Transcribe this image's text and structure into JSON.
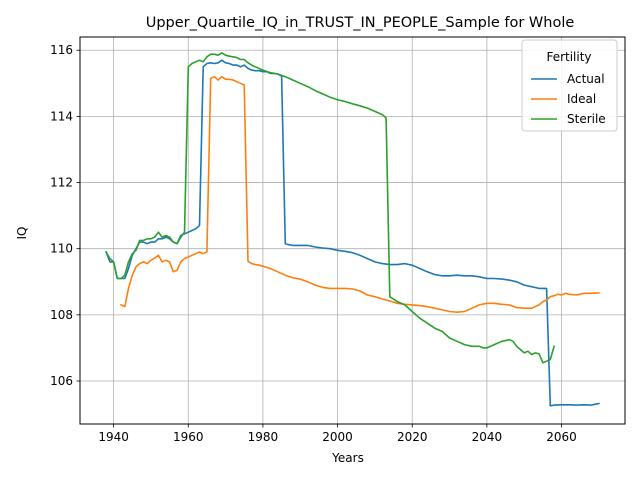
{
  "chart_data": {
    "type": "line",
    "title": "Upper_Quartile_IQ_in_TRUST_IN_PEOPLE_Sample for Whole",
    "xlabel": "Years",
    "ylabel": "IQ",
    "xlim": [
      1931,
      2077
    ],
    "ylim": [
      104.7,
      116.4
    ],
    "xticks": [
      1940,
      1960,
      1980,
      2000,
      2020,
      2040,
      2060
    ],
    "yticks": [
      106,
      108,
      110,
      112,
      114,
      116
    ],
    "grid": true,
    "legend": {
      "title": "Fertility",
      "position": "top-right"
    },
    "series": [
      {
        "name": "Actual",
        "color": "#1f77b4",
        "points": [
          [
            1938,
            109.9
          ],
          [
            1939,
            109.6
          ],
          [
            1940,
            109.6
          ],
          [
            1941,
            109.1
          ],
          [
            1942,
            109.1
          ],
          [
            1943,
            109.1
          ],
          [
            1944,
            109.4
          ],
          [
            1945,
            109.8
          ],
          [
            1946,
            110.0
          ],
          [
            1947,
            110.2
          ],
          [
            1948,
            110.2
          ],
          [
            1949,
            110.15
          ],
          [
            1950,
            110.2
          ],
          [
            1951,
            110.2
          ],
          [
            1952,
            110.3
          ],
          [
            1953,
            110.3
          ],
          [
            1954,
            110.35
          ],
          [
            1955,
            110.3
          ],
          [
            1956,
            110.2
          ],
          [
            1957,
            110.15
          ],
          [
            1958,
            110.4
          ],
          [
            1959,
            110.45
          ],
          [
            1960,
            110.5
          ],
          [
            1961,
            110.55
          ],
          [
            1962,
            110.6
          ],
          [
            1963,
            110.7
          ],
          [
            1964,
            115.5
          ],
          [
            1965,
            115.6
          ],
          [
            1966,
            115.62
          ],
          [
            1967,
            115.6
          ],
          [
            1968,
            115.62
          ],
          [
            1969,
            115.7
          ],
          [
            1970,
            115.62
          ],
          [
            1971,
            115.6
          ],
          [
            1972,
            115.55
          ],
          [
            1973,
            115.55
          ],
          [
            1974,
            115.5
          ],
          [
            1975,
            115.55
          ],
          [
            1976,
            115.45
          ],
          [
            1977,
            115.4
          ],
          [
            1978,
            115.38
          ],
          [
            1979,
            115.38
          ],
          [
            1980,
            115.35
          ],
          [
            1981,
            115.35
          ],
          [
            1982,
            115.3
          ],
          [
            1983,
            115.3
          ],
          [
            1984,
            115.28
          ],
          [
            1985,
            115.22
          ],
          [
            1986,
            110.15
          ],
          [
            1987,
            110.12
          ],
          [
            1988,
            110.1
          ],
          [
            1990,
            110.1
          ],
          [
            1992,
            110.1
          ],
          [
            1994,
            110.05
          ],
          [
            1996,
            110.02
          ],
          [
            1998,
            110.0
          ],
          [
            2000,
            109.95
          ],
          [
            2002,
            109.92
          ],
          [
            2004,
            109.88
          ],
          [
            2006,
            109.8
          ],
          [
            2008,
            109.7
          ],
          [
            2010,
            109.6
          ],
          [
            2012,
            109.55
          ],
          [
            2014,
            109.52
          ],
          [
            2016,
            109.52
          ],
          [
            2018,
            109.55
          ],
          [
            2020,
            109.5
          ],
          [
            2022,
            109.4
          ],
          [
            2024,
            109.3
          ],
          [
            2026,
            109.22
          ],
          [
            2028,
            109.18
          ],
          [
            2030,
            109.18
          ],
          [
            2032,
            109.2
          ],
          [
            2034,
            109.18
          ],
          [
            2036,
            109.18
          ],
          [
            2038,
            109.15
          ],
          [
            2040,
            109.1
          ],
          [
            2042,
            109.1
          ],
          [
            2044,
            109.08
          ],
          [
            2046,
            109.05
          ],
          [
            2048,
            109.0
          ],
          [
            2050,
            108.9
          ],
          [
            2052,
            108.85
          ],
          [
            2054,
            108.8
          ],
          [
            2055,
            108.8
          ],
          [
            2056,
            108.8
          ],
          [
            2057,
            105.25
          ],
          [
            2058,
            105.27
          ],
          [
            2060,
            105.28
          ],
          [
            2062,
            105.28
          ],
          [
            2064,
            105.27
          ],
          [
            2066,
            105.28
          ],
          [
            2068,
            105.27
          ],
          [
            2069,
            105.3
          ],
          [
            2070,
            105.32
          ]
        ]
      },
      {
        "name": "Ideal",
        "color": "#ff7f0e",
        "points": [
          [
            1942,
            108.3
          ],
          [
            1943,
            108.25
          ],
          [
            1944,
            108.8
          ],
          [
            1945,
            109.2
          ],
          [
            1946,
            109.45
          ],
          [
            1947,
            109.55
          ],
          [
            1948,
            109.6
          ],
          [
            1949,
            109.55
          ],
          [
            1950,
            109.65
          ],
          [
            1951,
            109.72
          ],
          [
            1952,
            109.8
          ],
          [
            1953,
            109.6
          ],
          [
            1954,
            109.65
          ],
          [
            1955,
            109.6
          ],
          [
            1956,
            109.3
          ],
          [
            1957,
            109.35
          ],
          [
            1958,
            109.6
          ],
          [
            1959,
            109.7
          ],
          [
            1960,
            109.75
          ],
          [
            1961,
            109.8
          ],
          [
            1962,
            109.85
          ],
          [
            1963,
            109.9
          ],
          [
            1964,
            109.85
          ],
          [
            1965,
            109.9
          ],
          [
            1966,
            115.15
          ],
          [
            1967,
            115.2
          ],
          [
            1968,
            115.1
          ],
          [
            1969,
            115.2
          ],
          [
            1970,
            115.12
          ],
          [
            1971,
            115.12
          ],
          [
            1972,
            115.1
          ],
          [
            1973,
            115.05
          ],
          [
            1974,
            115.0
          ],
          [
            1975,
            114.95
          ],
          [
            1976,
            109.62
          ],
          [
            1977,
            109.55
          ],
          [
            1978,
            109.52
          ],
          [
            1979,
            109.5
          ],
          [
            1980,
            109.47
          ],
          [
            1982,
            109.4
          ],
          [
            1984,
            109.3
          ],
          [
            1986,
            109.2
          ],
          [
            1988,
            109.12
          ],
          [
            1990,
            109.08
          ],
          [
            1992,
            109.0
          ],
          [
            1994,
            108.9
          ],
          [
            1996,
            108.83
          ],
          [
            1998,
            108.8
          ],
          [
            2000,
            108.8
          ],
          [
            2002,
            108.8
          ],
          [
            2004,
            108.78
          ],
          [
            2006,
            108.72
          ],
          [
            2008,
            108.6
          ],
          [
            2010,
            108.55
          ],
          [
            2012,
            108.48
          ],
          [
            2014,
            108.42
          ],
          [
            2016,
            108.35
          ],
          [
            2018,
            108.32
          ],
          [
            2020,
            108.3
          ],
          [
            2022,
            108.28
          ],
          [
            2024,
            108.25
          ],
          [
            2026,
            108.2
          ],
          [
            2028,
            108.15
          ],
          [
            2030,
            108.1
          ],
          [
            2032,
            108.08
          ],
          [
            2034,
            108.1
          ],
          [
            2036,
            108.2
          ],
          [
            2038,
            108.3
          ],
          [
            2040,
            108.35
          ],
          [
            2042,
            108.35
          ],
          [
            2044,
            108.32
          ],
          [
            2046,
            108.3
          ],
          [
            2048,
            108.22
          ],
          [
            2050,
            108.2
          ],
          [
            2052,
            108.2
          ],
          [
            2054,
            108.3
          ],
          [
            2055,
            108.4
          ],
          [
            2056,
            108.45
          ],
          [
            2057,
            108.55
          ],
          [
            2058,
            108.58
          ],
          [
            2059,
            108.62
          ],
          [
            2060,
            108.6
          ],
          [
            2061,
            108.65
          ],
          [
            2062,
            108.62
          ],
          [
            2064,
            108.6
          ],
          [
            2066,
            108.65
          ],
          [
            2068,
            108.65
          ],
          [
            2070,
            108.66
          ]
        ]
      },
      {
        "name": "Sterile",
        "color": "#2ca02c",
        "points": [
          [
            1938,
            109.9
          ],
          [
            1939,
            109.7
          ],
          [
            1940,
            109.6
          ],
          [
            1941,
            109.1
          ],
          [
            1942,
            109.1
          ],
          [
            1943,
            109.2
          ],
          [
            1944,
            109.6
          ],
          [
            1945,
            109.85
          ],
          [
            1946,
            109.95
          ],
          [
            1947,
            110.25
          ],
          [
            1948,
            110.25
          ],
          [
            1949,
            110.3
          ],
          [
            1950,
            110.3
          ],
          [
            1951,
            110.35
          ],
          [
            1952,
            110.5
          ],
          [
            1953,
            110.35
          ],
          [
            1954,
            110.4
          ],
          [
            1955,
            110.35
          ],
          [
            1956,
            110.2
          ],
          [
            1957,
            110.15
          ],
          [
            1958,
            110.35
          ],
          [
            1959,
            110.5
          ],
          [
            1960,
            115.5
          ],
          [
            1961,
            115.6
          ],
          [
            1962,
            115.65
          ],
          [
            1963,
            115.7
          ],
          [
            1964,
            115.65
          ],
          [
            1965,
            115.8
          ],
          [
            1966,
            115.88
          ],
          [
            1967,
            115.88
          ],
          [
            1968,
            115.85
          ],
          [
            1969,
            115.92
          ],
          [
            1970,
            115.85
          ],
          [
            1971,
            115.82
          ],
          [
            1972,
            115.8
          ],
          [
            1973,
            115.78
          ],
          [
            1974,
            115.72
          ],
          [
            1975,
            115.72
          ],
          [
            1976,
            115.62
          ],
          [
            1977,
            115.55
          ],
          [
            1978,
            115.5
          ],
          [
            1980,
            115.4
          ],
          [
            1982,
            115.32
          ],
          [
            1984,
            115.28
          ],
          [
            1986,
            115.2
          ],
          [
            1988,
            115.1
          ],
          [
            1990,
            115.0
          ],
          [
            1992,
            114.9
          ],
          [
            1994,
            114.78
          ],
          [
            1996,
            114.68
          ],
          [
            1998,
            114.58
          ],
          [
            2000,
            114.5
          ],
          [
            2002,
            114.45
          ],
          [
            2004,
            114.38
          ],
          [
            2006,
            114.32
          ],
          [
            2008,
            114.25
          ],
          [
            2010,
            114.15
          ],
          [
            2012,
            114.05
          ],
          [
            2013,
            113.95
          ],
          [
            2014,
            108.55
          ],
          [
            2016,
            108.4
          ],
          [
            2018,
            108.3
          ],
          [
            2020,
            108.1
          ],
          [
            2022,
            107.9
          ],
          [
            2024,
            107.75
          ],
          [
            2026,
            107.6
          ],
          [
            2028,
            107.5
          ],
          [
            2030,
            107.3
          ],
          [
            2032,
            107.2
          ],
          [
            2034,
            107.1
          ],
          [
            2036,
            107.05
          ],
          [
            2038,
            107.05
          ],
          [
            2039,
            107.0
          ],
          [
            2040,
            107.0
          ],
          [
            2042,
            107.1
          ],
          [
            2044,
            107.2
          ],
          [
            2046,
            107.25
          ],
          [
            2047,
            107.2
          ],
          [
            2048,
            107.05
          ],
          [
            2049,
            106.95
          ],
          [
            2050,
            106.85
          ],
          [
            2051,
            106.9
          ],
          [
            2052,
            106.8
          ],
          [
            2053,
            106.85
          ],
          [
            2054,
            106.82
          ],
          [
            2055,
            106.55
          ],
          [
            2056,
            106.6
          ],
          [
            2057,
            106.65
          ],
          [
            2058,
            107.05
          ]
        ]
      }
    ]
  }
}
